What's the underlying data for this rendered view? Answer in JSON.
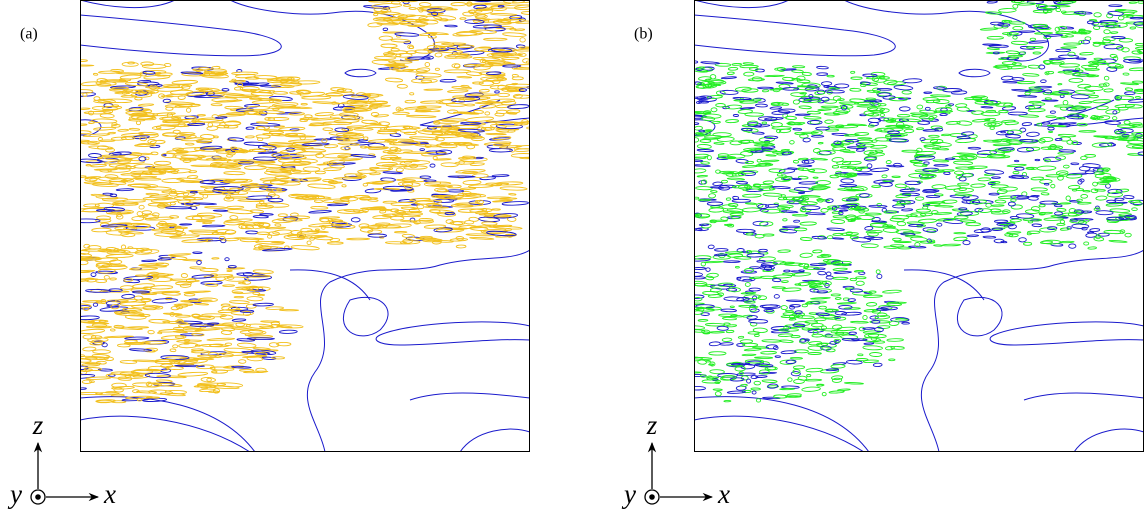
{
  "panels": [
    {
      "label": "(a)",
      "axes": {
        "vertical": "z",
        "out_of_page": "y",
        "horizontal": "x"
      }
    },
    {
      "label": "(b)",
      "axes": {
        "vertical": "z",
        "out_of_page": "y",
        "horizontal": "x"
      }
    }
  ]
}
